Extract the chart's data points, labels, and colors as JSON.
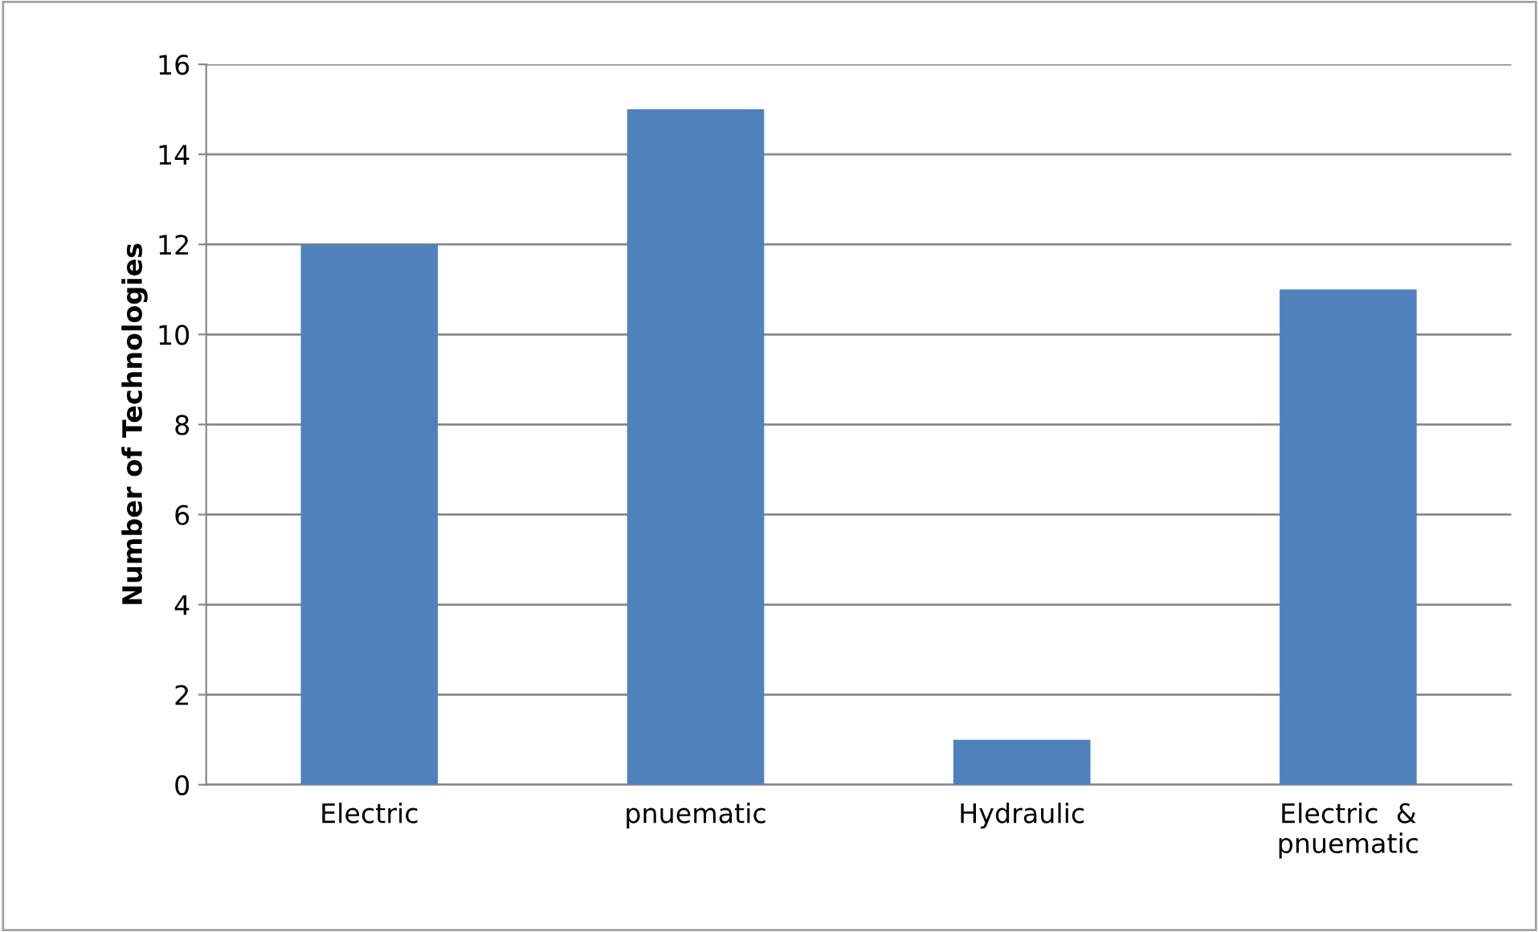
{
  "chart_data": {
    "type": "bar",
    "ylabel": "Number of Technologies",
    "categories": [
      "Electric",
      "pnuematic",
      "Hydraulic",
      "Electric  &\npnuematic"
    ],
    "values": [
      12,
      15,
      1,
      11
    ],
    "color": "#4f81bd",
    "ylim": [
      0,
      16
    ],
    "yticks": [
      0,
      2,
      4,
      6,
      8,
      10,
      12,
      14,
      16
    ],
    "grid": "y",
    "legend": false
  }
}
